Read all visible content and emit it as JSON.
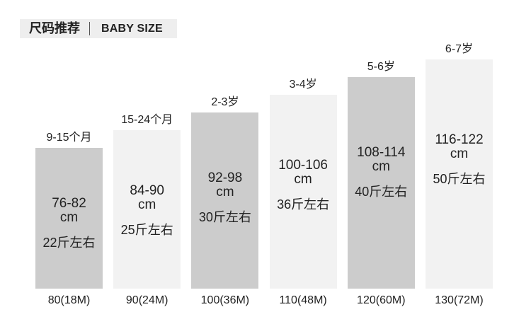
{
  "chart_data": {
    "type": "bar",
    "title": "尺码推荐",
    "subtitle": "BABY SIZE",
    "categories": [
      "80(18M)",
      "90(24M)",
      "100(36M)",
      "110(48M)",
      "120(60M)",
      "130(72M)"
    ],
    "values": [
      80,
      90,
      100,
      110,
      120,
      130
    ],
    "annotations": [
      {
        "age": "9-15个月",
        "range": "76-82",
        "unit": "cm",
        "weight": "22斤左右"
      },
      {
        "age": "15-24个月",
        "range": "84-90",
        "unit": "cm",
        "weight": "25斤左右"
      },
      {
        "age": "2-3岁",
        "range": "92-98",
        "unit": "cm",
        "weight": "30斤左右"
      },
      {
        "age": "3-4岁",
        "range": "100-106",
        "unit": "cm",
        "weight": "36斤左右"
      },
      {
        "age": "5-6岁",
        "range": "108-114",
        "unit": "cm",
        "weight": "40斤左右"
      },
      {
        "age": "6-7岁",
        "range": "116-122",
        "unit": "cm",
        "weight": "50斤左右"
      }
    ],
    "bar_colors": [
      "#cccccc",
      "#f2f2f2",
      "#cccccc",
      "#f2f2f2",
      "#cccccc",
      "#f2f2f2"
    ],
    "grid": false
  },
  "colors": {
    "text": "#222222",
    "header_bg": "#eeeeee",
    "divider": "#555555"
  }
}
